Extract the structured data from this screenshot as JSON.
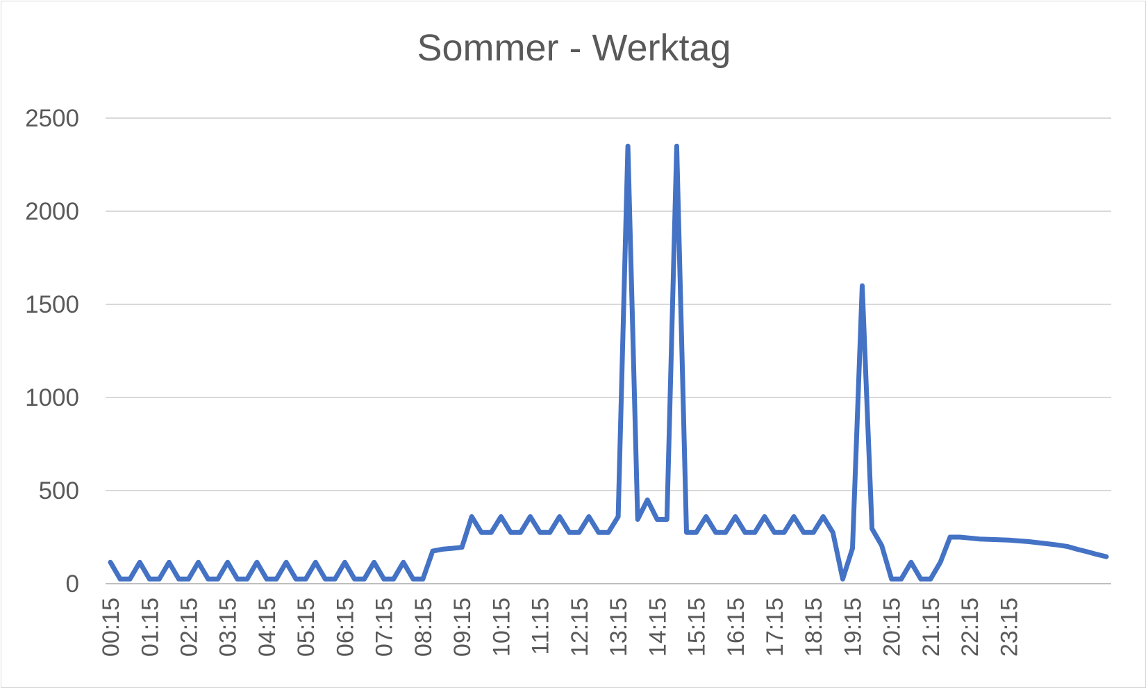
{
  "chart_data": {
    "type": "line",
    "title": "Sommer - Werktag",
    "xlabel": "",
    "ylabel": "",
    "ylim": [
      0,
      2500
    ],
    "yticks": [
      0,
      500,
      1000,
      1500,
      2000,
      2500
    ],
    "grid": true,
    "legend": "none",
    "x_tick_labels": [
      "00:15",
      "01:15",
      "02:15",
      "03:15",
      "04:15",
      "05:15",
      "06:15",
      "07:15",
      "08:15",
      "09:15",
      "10:15",
      "11:15",
      "12:15",
      "13:15",
      "14:15",
      "15:15",
      "16:15",
      "17:15",
      "18:15",
      "19:15",
      "20:15",
      "21:15",
      "22:15",
      "23:15"
    ],
    "series": [
      {
        "color": "#4472C4",
        "values": [
          115,
          25,
          25,
          115,
          25,
          25,
          115,
          25,
          25,
          115,
          25,
          25,
          115,
          25,
          25,
          115,
          25,
          25,
          115,
          25,
          25,
          115,
          25,
          25,
          115,
          25,
          25,
          115,
          25,
          25,
          115,
          25,
          25,
          175,
          185,
          190,
          195,
          360,
          275,
          275,
          360,
          275,
          275,
          360,
          275,
          275,
          360,
          275,
          275,
          360,
          275,
          275,
          360,
          2350,
          345,
          450,
          345,
          345,
          2350,
          275,
          275,
          360,
          275,
          275,
          360,
          275,
          275,
          360,
          275,
          275,
          360,
          275,
          275,
          360,
          275,
          25,
          190,
          1600,
          295,
          205,
          25,
          25,
          115,
          25,
          25,
          115,
          250,
          250,
          245,
          240,
          238,
          236,
          234,
          230,
          226,
          220,
          214,
          208,
          200,
          185,
          172,
          158,
          145
        ]
      }
    ]
  }
}
